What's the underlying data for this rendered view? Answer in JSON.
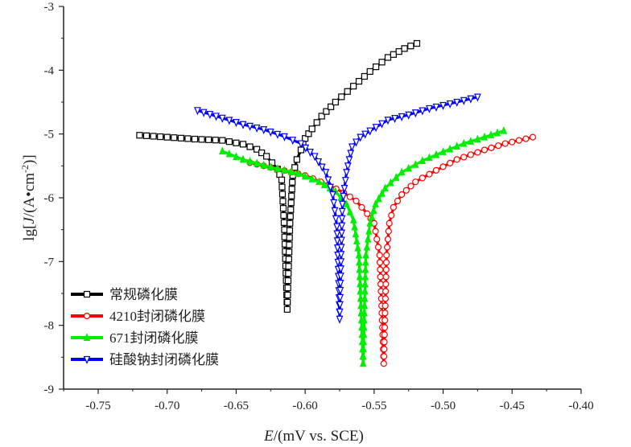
{
  "chart_data": {
    "type": "line",
    "xlabel": "E/(mV vs. SCE)",
    "ylabel": "lg[J/(A•cm-2)]",
    "xlim": [
      -0.775,
      -0.4
    ],
    "ylim": [
      -9,
      -3
    ],
    "xticks": [
      "-0.75",
      "-0.70",
      "-0.65",
      "-0.60",
      "-0.55",
      "-0.50",
      "-0.45",
      "-0.40"
    ],
    "yticks": [
      "-3",
      "-4",
      "-5",
      "-6",
      "-7",
      "-8",
      "-9"
    ],
    "legend_position": "bottom-left",
    "grid": false,
    "series": [
      {
        "name": "常规磷化膜",
        "color": "#000000",
        "marker": "square",
        "x": [
          -0.72,
          -0.7,
          -0.68,
          -0.66,
          -0.645,
          -0.635,
          -0.628,
          -0.62,
          -0.617,
          -0.615,
          -0.613,
          -0.611,
          -0.609,
          -0.606,
          -0.603,
          -0.6,
          -0.595,
          -0.588,
          -0.578,
          -0.565,
          -0.553,
          -0.54,
          -0.528,
          -0.519
        ],
        "y": [
          -5.02,
          -5.05,
          -5.08,
          -5.1,
          -5.16,
          -5.24,
          -5.35,
          -5.55,
          -5.72,
          -6.5,
          -7.75,
          -6.4,
          -5.65,
          -5.4,
          -5.25,
          -5.07,
          -4.92,
          -4.72,
          -4.5,
          -4.25,
          -4.02,
          -3.8,
          -3.66,
          -3.58
        ]
      },
      {
        "name": "4210封闭磷化膜",
        "color": "#ff0000",
        "marker": "circle",
        "x": [
          -0.64,
          -0.62,
          -0.6,
          -0.583,
          -0.572,
          -0.563,
          -0.555,
          -0.55,
          -0.546,
          -0.543,
          -0.541,
          -0.539,
          -0.536,
          -0.53,
          -0.52,
          -0.505,
          -0.49,
          -0.47,
          -0.455,
          -0.435
        ],
        "y": [
          -5.45,
          -5.55,
          -5.65,
          -5.8,
          -5.92,
          -6.05,
          -6.25,
          -6.4,
          -6.9,
          -8.6,
          -6.9,
          -6.4,
          -6.15,
          -5.95,
          -5.75,
          -5.57,
          -5.4,
          -5.25,
          -5.15,
          -5.05
        ]
      },
      {
        "name": "671封闭磷化膜",
        "color": "#00ee00",
        "marker": "triangle-up",
        "x": [
          -0.66,
          -0.645,
          -0.625,
          -0.605,
          -0.59,
          -0.578,
          -0.57,
          -0.565,
          -0.561,
          -0.558,
          -0.556,
          -0.553,
          -0.549,
          -0.542,
          -0.53,
          -0.515,
          -0.5,
          -0.485,
          -0.47,
          -0.456
        ],
        "y": [
          -5.27,
          -5.4,
          -5.52,
          -5.62,
          -5.75,
          -5.9,
          -6.1,
          -6.35,
          -6.9,
          -8.6,
          -6.9,
          -6.4,
          -6.1,
          -5.85,
          -5.6,
          -5.42,
          -5.28,
          -5.15,
          -5.05,
          -4.95
        ]
      },
      {
        "name": "硅酸钠封闭磷化膜",
        "color": "#0000ff",
        "marker": "triangle-down",
        "x": [
          -0.678,
          -0.66,
          -0.645,
          -0.63,
          -0.615,
          -0.603,
          -0.593,
          -0.585,
          -0.58,
          -0.577,
          -0.575,
          -0.573,
          -0.57,
          -0.566,
          -0.56,
          -0.553,
          -0.54,
          -0.525,
          -0.51,
          -0.49,
          -0.475
        ],
        "y": [
          -4.63,
          -4.75,
          -4.85,
          -4.93,
          -5.04,
          -5.15,
          -5.35,
          -5.6,
          -5.95,
          -6.45,
          -7.9,
          -6.1,
          -5.6,
          -5.2,
          -5.05,
          -4.95,
          -4.78,
          -4.7,
          -4.6,
          -4.5,
          -4.42
        ]
      }
    ]
  }
}
